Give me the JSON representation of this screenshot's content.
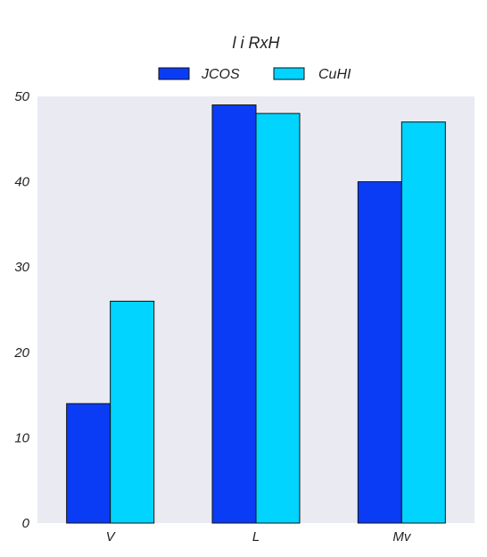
{
  "chart_data": {
    "type": "bar",
    "title": "l i RxH",
    "xlabel": "",
    "ylabel": "",
    "categories": [
      "V",
      "L",
      "Mv"
    ],
    "series": [
      {
        "name": "JCOS",
        "values": [
          14,
          49,
          40
        ],
        "color": "#0a3cf5"
      },
      {
        "name": "CuHI",
        "values": [
          26,
          48,
          47
        ],
        "color": "#00d4ff"
      }
    ],
    "ylim": [
      0,
      50
    ],
    "yticks": [
      0,
      10,
      20,
      30,
      40,
      50
    ],
    "grid": false,
    "legend_position": "top-center",
    "plot_background": "#eaeaf2"
  }
}
